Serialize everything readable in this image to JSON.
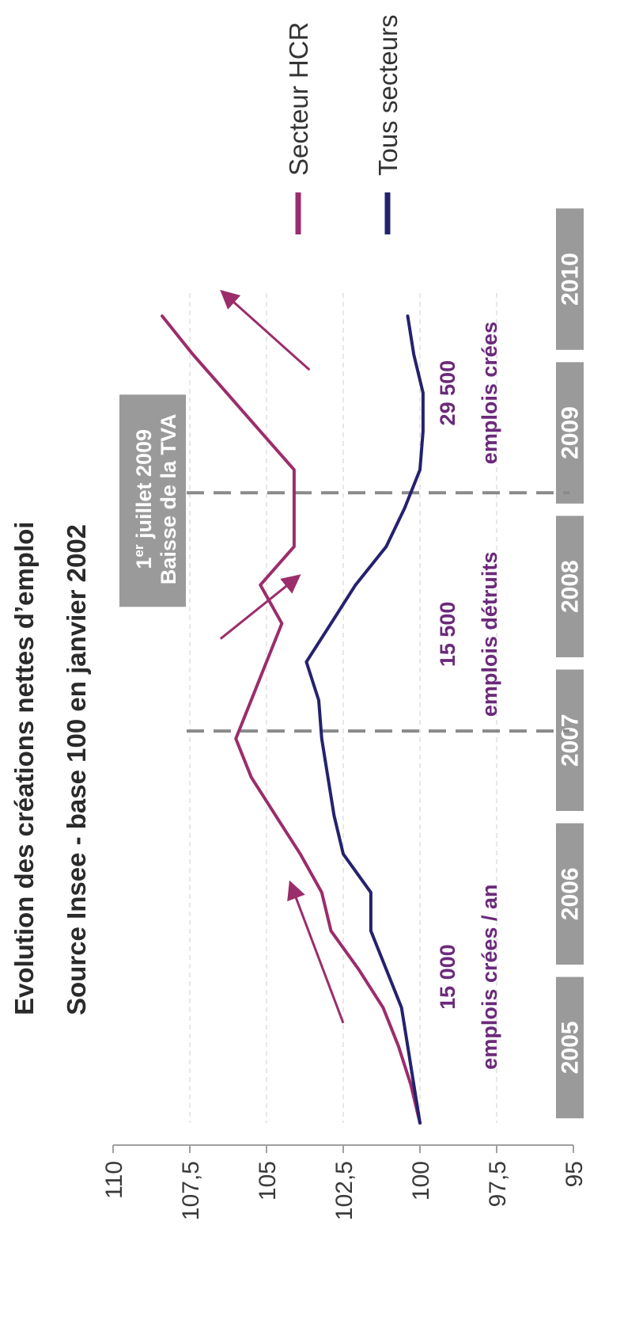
{
  "chart_data": {
    "type": "line",
    "title": "Evolution des créations nettes d’emploi",
    "subtitle": "Source Insee - base 100 en janvier 2002",
    "ylim": [
      95,
      110
    ],
    "y_ticks": [
      "95",
      "97,5",
      "100",
      "102,5",
      "105",
      "107,5",
      "110"
    ],
    "y_tick_values": [
      95,
      97.5,
      100,
      102.5,
      105,
      107.5,
      110
    ],
    "x_range": [
      2005,
      2010.4
    ],
    "year_labels": [
      "2005",
      "2006",
      "2007",
      "2008",
      "2009",
      "2010"
    ],
    "grid": true,
    "legend_position": "right",
    "colors": {
      "hcr": "#9b2d6b",
      "all": "#24226e",
      "annotation": "#6b2a7a",
      "band": "#9a9a9a",
      "axis": "#a0a0a0"
    },
    "series": [
      {
        "name": "Secteur HCR",
        "color": "#9b2d6b",
        "x": [
          2005.0,
          2005.25,
          2005.5,
          2005.75,
          2006.0,
          2006.25,
          2006.5,
          2006.75,
          2007.0,
          2007.25,
          2007.5,
          2007.75,
          2008.0,
          2008.25,
          2008.5,
          2008.75,
          2009.0,
          2009.25,
          2009.5,
          2009.75,
          2010.0,
          2010.25
        ],
        "values": [
          100.0,
          100.3,
          100.7,
          101.2,
          102.0,
          102.9,
          103.2,
          103.9,
          104.7,
          105.5,
          106.0,
          105.5,
          105.0,
          104.5,
          105.2,
          104.1,
          104.1,
          104.1,
          105.2,
          106.3,
          107.4,
          108.4
        ]
      },
      {
        "name": "Tous secteurs",
        "color": "#24226e",
        "x": [
          2005.0,
          2005.25,
          2005.5,
          2005.75,
          2006.0,
          2006.25,
          2006.5,
          2006.75,
          2007.0,
          2007.25,
          2007.5,
          2007.75,
          2008.0,
          2008.25,
          2008.5,
          2008.75,
          2009.0,
          2009.25,
          2009.5,
          2009.75,
          2010.0,
          2010.25
        ],
        "values": [
          100.0,
          100.2,
          100.4,
          100.6,
          101.1,
          101.6,
          101.6,
          102.5,
          102.8,
          103.0,
          103.2,
          103.3,
          103.7,
          102.9,
          102.1,
          101.1,
          100.5,
          100.0,
          99.9,
          99.9,
          100.2,
          100.4
        ]
      }
    ],
    "events": [
      {
        "x": 2007.55
      },
      {
        "x": 2009.1,
        "label_line1": "1",
        "label_sup": "er",
        "label_line1_rest": " juillet 2009",
        "label_line2": "Baisse de la TVA"
      }
    ],
    "trend_arrows": [
      {
        "x1": 2005.65,
        "y1": 102.5,
        "x2": 2006.55,
        "y2": 104.2
      },
      {
        "x1": 2008.15,
        "y1": 106.5,
        "x2": 2008.55,
        "y2": 104.0
      },
      {
        "x1": 2009.9,
        "y1": 103.6,
        "x2": 2010.4,
        "y2": 106.4
      }
    ],
    "annotations": [
      {
        "line1": "15 000",
        "line2": "emplois crées / an"
      },
      {
        "line1": "15 500",
        "line2": "emplois détruits"
      },
      {
        "line1": "29 500",
        "line2": "emplois crées"
      }
    ]
  }
}
